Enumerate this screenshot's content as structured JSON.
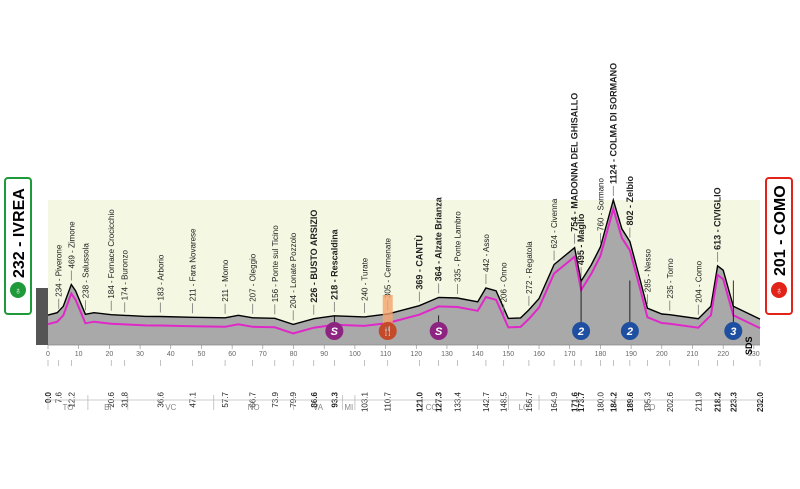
{
  "start": {
    "label": "232 - IVREA",
    "color": "#1f9a3a"
  },
  "finish": {
    "label": "201 - COMO",
    "color": "#e2231a"
  },
  "elevation_ticks": [
    "200",
    "400",
    "600",
    "800"
  ],
  "km_ticks": [
    "0",
    "10",
    "20",
    "30",
    "40",
    "50",
    "60",
    "70",
    "80",
    "90",
    "100",
    "110",
    "120",
    "130",
    "140",
    "150",
    "160",
    "170",
    "180",
    "190",
    "200",
    "210",
    "220",
    "230"
  ],
  "profile": [
    [
      0,
      232
    ],
    [
      3,
      250
    ],
    [
      5,
      300
    ],
    [
      7.6,
      469
    ],
    [
      9,
      420
    ],
    [
      12.2,
      238
    ],
    [
      15,
      250
    ],
    [
      20.6,
      235
    ],
    [
      31.8,
      222
    ],
    [
      36.6,
      221
    ],
    [
      47.1,
      215
    ],
    [
      57.7,
      211
    ],
    [
      62,
      230
    ],
    [
      66.7,
      211
    ],
    [
      73.9,
      207
    ],
    [
      79.9,
      160
    ],
    [
      86.6,
      204
    ],
    [
      93.3,
      226
    ],
    [
      103.1,
      218
    ],
    [
      110.7,
      240
    ],
    [
      121,
      305
    ],
    [
      127.3,
      369
    ],
    [
      133.4,
      364
    ],
    [
      140,
      335
    ],
    [
      142.7,
      442
    ],
    [
      146,
      420
    ],
    [
      150,
      206
    ],
    [
      154,
      210
    ],
    [
      156.7,
      272
    ],
    [
      160,
      360
    ],
    [
      164.9,
      624
    ],
    [
      171.6,
      754
    ],
    [
      173.7,
      495
    ],
    [
      177,
      620
    ],
    [
      180,
      760
    ],
    [
      184.2,
      1124
    ],
    [
      187,
      900
    ],
    [
      189.6,
      802
    ],
    [
      193,
      500
    ],
    [
      195.3,
      285
    ],
    [
      200,
      240
    ],
    [
      202.6,
      235
    ],
    [
      211.9,
      204
    ],
    [
      216,
      300
    ],
    [
      218.2,
      613
    ],
    [
      220,
      580
    ],
    [
      223.3,
      300
    ],
    [
      232,
      201
    ]
  ],
  "places": [
    {
      "km": "0.0",
      "name": "",
      "km_pos": 0,
      "alt": 232,
      "bold": true
    },
    {
      "km": "7.6",
      "name": "234 - Piverone",
      "km_pos": 3.5,
      "alt": 250
    },
    {
      "km": "12.2",
      "name": "469 - Zimone",
      "km_pos": 7.6,
      "alt": 469
    },
    {
      "km": "",
      "name": "238 - Salussola",
      "km_pos": 12.2,
      "alt": 238
    },
    {
      "km": "20.6",
      "name": "184 - Fornace Crocicchio",
      "km_pos": 20.6,
      "alt": 235
    },
    {
      "km": "31.8",
      "name": "174 - Buronzo",
      "km_pos": 25,
      "alt": 222
    },
    {
      "km": "36.6",
      "name": "183 - Arborio",
      "km_pos": 36.6,
      "alt": 221
    },
    {
      "km": "47.1",
      "name": "211 - Fara Novarese",
      "km_pos": 47.1,
      "alt": 215
    },
    {
      "km": "57.7",
      "name": "211 - Momo",
      "km_pos": 57.7,
      "alt": 211
    },
    {
      "km": "66.7",
      "name": "207 - Oleggio",
      "km_pos": 66.7,
      "alt": 211
    },
    {
      "km": "73.9",
      "name": "156 - Ponte sul Ticino",
      "km_pos": 73.9,
      "alt": 207
    },
    {
      "km": "79.9",
      "name": "204 - Lonate Pozzolo",
      "km_pos": 79.9,
      "alt": 160
    },
    {
      "km": "86.6",
      "name": "226 - BUSTO ARSIZIO",
      "km_pos": 86.6,
      "alt": 204,
      "bold": true
    },
    {
      "km": "93.3",
      "name": "218 - Rescaldina",
      "km_pos": 93.3,
      "alt": 226,
      "bold": true
    },
    {
      "km": "103.1",
      "name": "240 - Turate",
      "km_pos": 103.1,
      "alt": 218
    },
    {
      "km": "110.7",
      "name": "305 - Cermenate",
      "km_pos": 110.7,
      "alt": 240
    },
    {
      "km": "121.0",
      "name": "369 - CANTÙ",
      "km_pos": 121,
      "alt": 305,
      "bold": true
    },
    {
      "km": "127.3",
      "name": "364 - Alzate Brianza",
      "km_pos": 127.3,
      "alt": 369,
      "bold": true
    },
    {
      "km": "133.4",
      "name": "335 - Ponte Lambro",
      "km_pos": 133.4,
      "alt": 364
    },
    {
      "km": "142.7",
      "name": "442 - Asso",
      "km_pos": 142.7,
      "alt": 442
    },
    {
      "km": "148.5",
      "name": "206 - Onno",
      "km_pos": 148.5,
      "alt": 206
    },
    {
      "km": "156.7",
      "name": "272 - Regatola",
      "km_pos": 156.7,
      "alt": 272
    },
    {
      "km": "164.9",
      "name": "624 - Civenna",
      "km_pos": 164.9,
      "alt": 624
    },
    {
      "km": "171.6",
      "name": "754 - MADONNA DEL GHISALLO",
      "km_pos": 171.6,
      "alt": 754,
      "bold": true
    },
    {
      "km": "173.7",
      "name": "495 - Maglio",
      "km_pos": 173.7,
      "alt": 495,
      "bold": true
    },
    {
      "km": "180.0",
      "name": "760 - Sormano",
      "km_pos": 180,
      "alt": 760
    },
    {
      "km": "184.2",
      "name": "1124 - COLMA DI SORMANO",
      "km_pos": 184.2,
      "alt": 1124,
      "bold": true
    },
    {
      "km": "189.6",
      "name": "802 - Zelbio",
      "km_pos": 189.6,
      "alt": 802,
      "bold": true
    },
    {
      "km": "195.3",
      "name": "285 - Nesso",
      "km_pos": 195.3,
      "alt": 285
    },
    {
      "km": "202.6",
      "name": "235 - Torno",
      "km_pos": 202.6,
      "alt": 235
    },
    {
      "km": "211.9",
      "name": "204 - Como",
      "km_pos": 211.9,
      "alt": 204
    },
    {
      "km": "218.2",
      "name": "613 - CIVIGLIO",
      "km_pos": 218.2,
      "alt": 613,
      "bold": true
    },
    {
      "km": "223.3",
      "name": "",
      "km_pos": 223.3,
      "alt": 300,
      "bold": true
    },
    {
      "km": "232.0",
      "name": "",
      "km_pos": 232,
      "alt": 201,
      "bold": true
    }
  ],
  "markers": [
    {
      "type": "sprint",
      "label": "S",
      "km": 93.3,
      "color": "#8e2481"
    },
    {
      "type": "feed",
      "label": "🍴",
      "km": 110.7,
      "color": "#c44a2a"
    },
    {
      "type": "sprint",
      "label": "S",
      "km": 127.3,
      "color": "#8e2481"
    },
    {
      "type": "climb",
      "label": "2",
      "km": 173.7,
      "color": "#1f4fa0"
    },
    {
      "type": "climb",
      "label": "2",
      "km": 189.6,
      "color": "#1f4fa0"
    },
    {
      "type": "climb",
      "label": "3",
      "km": 223.3,
      "color": "#1f4fa0"
    }
  ],
  "regions": [
    "TO",
    "BI",
    "VC",
    "NO",
    "VA",
    "MI",
    "CO",
    "LC",
    "CO"
  ],
  "brand": "SDS"
}
